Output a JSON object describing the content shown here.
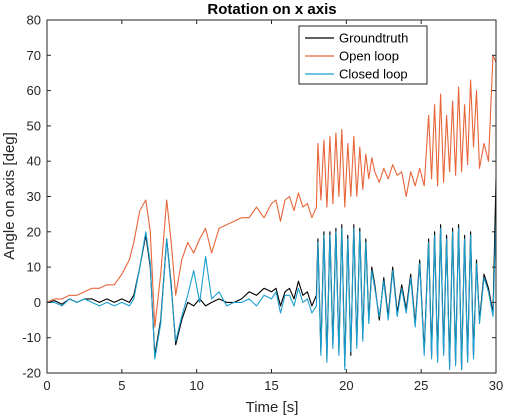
{
  "chart_data": {
    "type": "line",
    "title": "Rotation on x axis",
    "xlabel": "Time [s]",
    "ylabel": "Angle on axis [deg]",
    "xlim": [
      0,
      30
    ],
    "ylim": [
      -20,
      80
    ],
    "xticks": [
      0,
      5,
      10,
      15,
      20,
      25,
      30
    ],
    "yticks": [
      -20,
      -10,
      0,
      10,
      20,
      30,
      40,
      50,
      60,
      70,
      80
    ],
    "grid": false,
    "legend_position": "top-right",
    "series": [
      {
        "name": "Groundtruth",
        "color": "#000000",
        "x": [
          0,
          0.5,
          1,
          1.5,
          2,
          2.5,
          3,
          3.5,
          4,
          4.5,
          5,
          5.5,
          5.8,
          6.2,
          6.6,
          6.9,
          7.2,
          7.6,
          8,
          8.3,
          8.6,
          9,
          9.4,
          9.8,
          10.2,
          10.6,
          11,
          11.5,
          12,
          12.5,
          13,
          13.5,
          14,
          14.5,
          15,
          15.3,
          15.6,
          15.9,
          16.2,
          16.5,
          16.8,
          17.1,
          17.4,
          17.7,
          18,
          18.1,
          18.3,
          18.5,
          18.7,
          18.9,
          19.1,
          19.3,
          19.5,
          19.7,
          19.9,
          20.1,
          20.3,
          20.5,
          20.7,
          20.9,
          21.1,
          21.3,
          21.5,
          21.7,
          21.9,
          22.2,
          22.5,
          22.8,
          23.1,
          23.4,
          23.7,
          24,
          24.3,
          24.6,
          24.9,
          25.2,
          25.5,
          25.7,
          25.9,
          26.1,
          26.3,
          26.5,
          26.7,
          26.9,
          27.1,
          27.3,
          27.5,
          27.7,
          27.9,
          28.1,
          28.3,
          28.5,
          28.7,
          28.9,
          29.2,
          29.5,
          29.8,
          30
        ],
        "values": [
          0,
          0.5,
          -0.5,
          1,
          0,
          1,
          1,
          0,
          1,
          0,
          1,
          0,
          2,
          10,
          19,
          10,
          -15,
          -5,
          18,
          5,
          -12,
          -5,
          0,
          -1,
          1,
          -1,
          0,
          1,
          0,
          0,
          1,
          3,
          2,
          4,
          3,
          4,
          -1,
          3,
          4,
          1,
          6,
          2,
          3,
          -1,
          2,
          18,
          -14,
          20,
          -16,
          20,
          -12,
          21,
          -14,
          22,
          -18,
          19,
          -15,
          22,
          -12,
          21,
          -10,
          18,
          -5,
          10,
          5,
          -5,
          7,
          -4,
          10,
          -3,
          5,
          -2,
          8,
          -6,
          12,
          -14,
          18,
          -15,
          20,
          -16,
          22,
          -14,
          19,
          -18,
          21,
          -17,
          22,
          -19,
          19,
          -16,
          20,
          -15,
          12,
          -5,
          8,
          4,
          -3,
          35
        ]
      },
      {
        "name": "Open loop",
        "color": "#e8653a",
        "x": [
          0,
          0.5,
          1,
          1.5,
          2,
          2.5,
          3,
          3.5,
          4,
          4.5,
          5,
          5.5,
          5.8,
          6.2,
          6.6,
          6.9,
          7.2,
          7.6,
          8,
          8.3,
          8.6,
          9,
          9.4,
          9.8,
          10.2,
          10.6,
          11,
          11.5,
          12,
          12.5,
          13,
          13.5,
          14,
          14.5,
          15,
          15.3,
          15.6,
          15.9,
          16.2,
          16.5,
          16.8,
          17.1,
          17.4,
          17.7,
          18,
          18.1,
          18.3,
          18.5,
          18.7,
          18.9,
          19.1,
          19.3,
          19.5,
          19.7,
          19.9,
          20.1,
          20.3,
          20.5,
          20.7,
          20.9,
          21.1,
          21.3,
          21.5,
          21.7,
          21.9,
          22.2,
          22.5,
          22.8,
          23.1,
          23.4,
          23.7,
          24,
          24.3,
          24.6,
          24.9,
          25.2,
          25.5,
          25.7,
          25.9,
          26.1,
          26.3,
          26.5,
          26.7,
          26.9,
          27.1,
          27.3,
          27.5,
          27.7,
          27.9,
          28.1,
          28.3,
          28.5,
          28.7,
          28.9,
          29.2,
          29.5,
          29.8,
          30
        ],
        "values": [
          0,
          1,
          1,
          2,
          2,
          3,
          4,
          4,
          5,
          5,
          8,
          12,
          17,
          26,
          29,
          20,
          -7,
          8,
          29,
          17,
          2,
          12,
          17,
          14,
          18,
          21,
          14,
          21,
          22,
          23,
          24,
          24,
          27,
          24,
          28,
          29,
          23,
          29,
          30,
          26,
          31,
          27,
          28,
          24,
          27,
          45,
          29,
          46,
          27,
          47,
          28,
          48,
          30,
          49,
          27,
          45,
          30,
          47,
          30,
          44,
          32,
          42,
          35,
          41,
          37,
          34,
          38,
          35,
          39,
          36,
          37,
          30,
          37,
          33,
          38,
          33,
          53,
          35,
          56,
          33,
          59,
          34,
          53,
          37,
          57,
          36,
          61,
          37,
          56,
          39,
          63,
          44,
          60,
          38,
          45,
          40,
          70,
          68
        ]
      },
      {
        "name": "Closed loop",
        "color": "#1a9fcf",
        "x": [
          0,
          0.5,
          1,
          1.5,
          2,
          2.5,
          3,
          3.5,
          4,
          4.5,
          5,
          5.5,
          5.8,
          6.2,
          6.6,
          6.9,
          7.2,
          7.6,
          8,
          8.3,
          8.6,
          9,
          9.4,
          9.8,
          10.2,
          10.6,
          11,
          11.5,
          12,
          12.5,
          13,
          13.5,
          14,
          14.5,
          15,
          15.3,
          15.6,
          15.9,
          16.2,
          16.5,
          16.8,
          17.1,
          17.4,
          17.7,
          18,
          18.1,
          18.3,
          18.5,
          18.7,
          18.9,
          19.1,
          19.3,
          19.5,
          19.7,
          19.9,
          20.1,
          20.3,
          20.5,
          20.7,
          20.9,
          21.1,
          21.3,
          21.5,
          21.7,
          21.9,
          22.2,
          22.5,
          22.8,
          23.1,
          23.4,
          23.7,
          24,
          24.3,
          24.6,
          24.9,
          25.2,
          25.5,
          25.7,
          25.9,
          26.1,
          26.3,
          26.5,
          26.7,
          26.9,
          27.1,
          27.3,
          27.5,
          27.7,
          27.9,
          28.1,
          28.3,
          28.5,
          28.7,
          28.9,
          29.2,
          29.5,
          29.8,
          30
        ],
        "values": [
          0,
          0,
          -1,
          1,
          0,
          1,
          0,
          -1,
          0,
          -1,
          0,
          -1,
          1,
          10,
          20,
          11,
          -16,
          -6,
          18,
          4,
          -11,
          -4,
          2,
          9,
          0,
          13,
          1,
          3,
          -1,
          0,
          0,
          1,
          -1,
          2,
          1,
          3,
          -3,
          2,
          2,
          -1,
          4,
          0,
          1,
          -3,
          -1,
          17,
          -15,
          19,
          -17,
          19,
          -13,
          20,
          -15,
          21,
          -19,
          18,
          -14,
          21,
          -13,
          20,
          -11,
          17,
          -6,
          9,
          4,
          -4,
          6,
          -5,
          9,
          -4,
          4,
          -3,
          7,
          -7,
          11,
          -15,
          17,
          -16,
          19,
          -17,
          21,
          -15,
          18,
          -19,
          20,
          -18,
          21,
          -19,
          18,
          -17,
          19,
          -16,
          11,
          -6,
          7,
          3,
          -4,
          24
        ]
      }
    ]
  }
}
